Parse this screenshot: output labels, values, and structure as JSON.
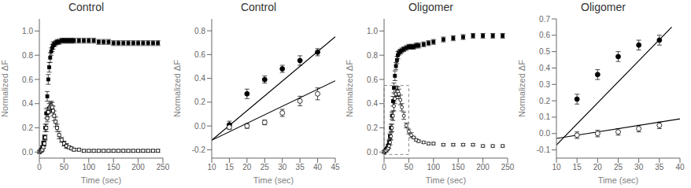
{
  "chart_data": [
    {
      "type": "scatter",
      "title": "Control",
      "xlabel": "Time (sec)",
      "ylabel": "Normalized ΔF",
      "xlim": [
        0,
        250
      ],
      "ylim": [
        -0.05,
        1.1
      ],
      "xticks": [
        0,
        50,
        100,
        150,
        200,
        250
      ],
      "yticks": [
        {
          "value": 0,
          "label": "0.0"
        },
        0.2,
        0.4,
        0.6,
        0.8,
        {
          "value": 1,
          "label": "1.0"
        }
      ],
      "grid": false,
      "series": [
        {
          "type": "scatter",
          "marker": "square",
          "color": "#000000",
          "x": [
            0,
            2,
            4,
            6,
            8,
            10,
            12,
            14,
            16,
            18,
            20,
            22,
            24,
            26,
            28,
            30,
            33,
            36,
            40,
            45,
            50,
            55,
            60,
            65,
            70,
            80,
            90,
            100,
            110,
            120,
            130,
            140,
            150,
            160,
            170,
            180,
            190,
            200,
            210,
            220,
            230,
            240
          ],
          "values": [
            0,
            0.01,
            0.02,
            0.04,
            0.07,
            0.12,
            0.2,
            0.32,
            0.46,
            0.6,
            0.7,
            0.78,
            0.83,
            0.86,
            0.88,
            0.89,
            0.9,
            0.91,
            0.91,
            0.92,
            0.92,
            0.92,
            0.92,
            0.92,
            0.92,
            0.92,
            0.92,
            0.92,
            0.92,
            0.91,
            0.91,
            0.91,
            0.9,
            0.9,
            0.9,
            0.9,
            0.9,
            0.9,
            0.9,
            0.9,
            0.9,
            0.9
          ],
          "yerr": [
            0.01,
            0.01,
            0.01,
            0.01,
            0.02,
            0.02,
            0.03,
            0.04,
            0.04,
            0.04,
            0.04,
            0.04,
            0.03,
            0.03,
            0.03,
            0.02,
            0.02,
            0.02,
            0.02,
            0.02,
            0.02,
            0.02,
            0.02,
            0.02,
            0.02,
            0.02,
            0.02,
            0.02,
            0.02,
            0.02,
            0.02,
            0.02,
            0.02,
            0.02,
            0.02,
            0.02,
            0.02,
            0.02,
            0.02,
            0.02,
            0.02,
            0.02
          ]
        },
        {
          "type": "scatter",
          "marker": "open-square",
          "color": "#000000",
          "x": [
            0,
            2,
            4,
            6,
            8,
            10,
            12,
            14,
            16,
            18,
            20,
            22,
            24,
            26,
            28,
            30,
            33,
            36,
            40,
            45,
            50,
            55,
            60,
            65,
            70,
            80,
            90,
            100,
            110,
            120,
            130,
            140,
            150,
            160,
            170,
            180,
            190,
            200,
            210,
            220,
            230,
            240
          ],
          "values": [
            0,
            0.01,
            0.01,
            0.02,
            0.04,
            0.07,
            0.12,
            0.2,
            0.28,
            0.33,
            0.36,
            0.37,
            0.38,
            0.37,
            0.34,
            0.3,
            0.25,
            0.2,
            0.14,
            0.1,
            0.07,
            0.05,
            0.04,
            0.03,
            0.02,
            0.02,
            0.01,
            0.01,
            0.01,
            0.01,
            0.01,
            0.01,
            0.01,
            0.01,
            0.01,
            0.01,
            0.01,
            0.01,
            0.01,
            0.01,
            0.01,
            0.01
          ],
          "yerr": [
            0.01,
            0.01,
            0.01,
            0.01,
            0.01,
            0.02,
            0.02,
            0.03,
            0.03,
            0.04,
            0.04,
            0.04,
            0.04,
            0.04,
            0.04,
            0.04,
            0.04,
            0.03,
            0.03,
            0.02,
            0.02,
            0.02,
            0.01,
            0.01,
            0.01,
            0.01,
            0.01,
            0.01,
            0.01,
            0.01,
            0.01,
            0.01,
            0.01,
            0.01,
            0.01,
            0.01,
            0.01,
            0.01,
            0.01,
            0.01,
            0.01,
            0.01
          ]
        }
      ]
    },
    {
      "type": "scatter",
      "title": "Control",
      "xlabel": "Time (sec)",
      "ylabel": "Normalized ΔF",
      "xlim": [
        10,
        45
      ],
      "ylim": [
        -0.27,
        0.9
      ],
      "xticks": [
        10,
        15,
        20,
        25,
        30,
        35,
        40,
        45
      ],
      "yticks": [
        -0.2,
        {
          "value": 0,
          "label": "0.0"
        },
        0.2,
        0.4,
        0.6,
        0.8
      ],
      "grid": false,
      "series": [
        {
          "type": "line",
          "line_style": "solid",
          "color": "#000000",
          "x": [
            10,
            45
          ],
          "values": [
            -0.12,
            0.75
          ]
        },
        {
          "type": "line",
          "line_style": "solid",
          "color": "#000000",
          "x": [
            10,
            45
          ],
          "values": [
            -0.12,
            0.38
          ]
        },
        {
          "type": "scatter",
          "marker": "circle",
          "color": "#000000",
          "x": [
            15,
            20,
            25,
            30,
            35,
            40
          ],
          "values": [
            0.01,
            0.27,
            0.39,
            0.48,
            0.55,
            0.62
          ],
          "yerr": [
            0.03,
            0.04,
            0.03,
            0.03,
            0.04,
            0.03
          ]
        },
        {
          "type": "scatter",
          "marker": "open-circle",
          "color": "#000000",
          "x": [
            15,
            20,
            25,
            30,
            35,
            40
          ],
          "values": [
            -0.01,
            0.0,
            0.03,
            0.11,
            0.21,
            0.27
          ],
          "yerr": [
            0.02,
            0.02,
            0.02,
            0.03,
            0.04,
            0.05
          ]
        }
      ]
    },
    {
      "type": "scatter",
      "title": "Oligomer",
      "xlabel": "Time (sec)",
      "ylabel": "Normalized ΔF",
      "xlim": [
        0,
        250
      ],
      "ylim": [
        -0.05,
        1.1
      ],
      "xticks": [
        0,
        50,
        100,
        150,
        200,
        250
      ],
      "yticks": [
        {
          "value": 0,
          "label": "0.0"
        },
        0.2,
        0.4,
        0.6,
        0.8,
        {
          "value": 1,
          "label": "1.0"
        }
      ],
      "grid": false,
      "series": [
        {
          "type": "scatter",
          "marker": "square",
          "color": "#000000",
          "x": [
            0,
            2,
            4,
            6,
            8,
            10,
            12,
            14,
            16,
            18,
            20,
            22,
            24,
            26,
            28,
            30,
            33,
            36,
            40,
            45,
            50,
            55,
            60,
            65,
            70,
            80,
            90,
            100,
            120,
            140,
            160,
            180,
            200,
            220,
            240
          ],
          "values": [
            0,
            0.01,
            0.02,
            0.03,
            0.05,
            0.08,
            0.13,
            0.2,
            0.3,
            0.42,
            0.53,
            0.63,
            0.71,
            0.76,
            0.8,
            0.82,
            0.83,
            0.84,
            0.85,
            0.86,
            0.87,
            0.87,
            0.87,
            0.88,
            0.88,
            0.89,
            0.9,
            0.91,
            0.93,
            0.94,
            0.95,
            0.96,
            0.96,
            0.96,
            0.96
          ],
          "yerr": [
            0.01,
            0.01,
            0.01,
            0.01,
            0.01,
            0.02,
            0.02,
            0.03,
            0.03,
            0.04,
            0.04,
            0.04,
            0.03,
            0.03,
            0.03,
            0.02,
            0.02,
            0.02,
            0.02,
            0.02,
            0.02,
            0.02,
            0.02,
            0.02,
            0.02,
            0.02,
            0.02,
            0.02,
            0.02,
            0.02,
            0.02,
            0.02,
            0.02,
            0.02,
            0.02
          ]
        },
        {
          "type": "scatter",
          "marker": "open-circle",
          "color": "#000000",
          "x": [
            0,
            2,
            4,
            6,
            8,
            10,
            12,
            14,
            16,
            18,
            20,
            22,
            24,
            26,
            28,
            30,
            33,
            36,
            40,
            45,
            50,
            55,
            60,
            65,
            70,
            80,
            90,
            100,
            120,
            140,
            160,
            180,
            200,
            220,
            240
          ],
          "values": [
            0,
            0.01,
            0.01,
            0.02,
            0.03,
            0.05,
            0.08,
            0.13,
            0.2,
            0.3,
            0.38,
            0.44,
            0.48,
            0.5,
            0.5,
            0.48,
            0.43,
            0.37,
            0.3,
            0.22,
            0.17,
            0.14,
            0.12,
            0.1,
            0.09,
            0.08,
            0.07,
            0.07,
            0.06,
            0.06,
            0.06,
            0.06,
            0.05,
            0.05,
            0.05
          ],
          "yerr": [
            0.01,
            0.01,
            0.01,
            0.01,
            0.01,
            0.02,
            0.02,
            0.03,
            0.03,
            0.04,
            0.04,
            0.04,
            0.04,
            0.04,
            0.04,
            0.04,
            0.04,
            0.03,
            0.03,
            0.02,
            0.02,
            0.02,
            0.01,
            0.01,
            0.01,
            0.01,
            0.01,
            0.01,
            0.01,
            0.01,
            0.01,
            0.01,
            0.01,
            0.01,
            0.01
          ]
        }
      ],
      "box": {
        "x": [
          0,
          50
        ],
        "y": [
          -0.02,
          0.55
        ],
        "color": "#888888",
        "line_style": "dashed"
      }
    },
    {
      "type": "scatter",
      "title": "Oligomer",
      "xlabel": "Time (sec)",
      "ylabel": "Normalized ΔF",
      "xlim": [
        10,
        40
      ],
      "ylim": [
        -0.15,
        0.7
      ],
      "xticks": [
        10,
        15,
        20,
        25,
        30,
        35,
        40
      ],
      "yticks": [
        -0.1,
        {
          "value": 0,
          "label": "0.0"
        },
        0.1,
        0.2,
        0.3,
        0.4,
        0.5,
        0.6,
        0.7
      ],
      "grid": false,
      "series": [
        {
          "type": "line",
          "line_style": "solid",
          "color": "#000000",
          "x": [
            10,
            38
          ],
          "values": [
            -0.07,
            0.65
          ]
        },
        {
          "type": "line",
          "line_style": "solid",
          "color": "#000000",
          "x": [
            10,
            40
          ],
          "values": [
            -0.03,
            0.09
          ]
        },
        {
          "type": "scatter",
          "marker": "circle",
          "color": "#000000",
          "x": [
            15,
            20,
            25,
            30,
            35
          ],
          "values": [
            0.21,
            0.36,
            0.47,
            0.54,
            0.57
          ],
          "yerr": [
            0.03,
            0.03,
            0.03,
            0.03,
            0.03
          ]
        },
        {
          "type": "scatter",
          "marker": "open-circle",
          "color": "#000000",
          "x": [
            15,
            20,
            25,
            30,
            35
          ],
          "values": [
            -0.01,
            0.0,
            0.01,
            0.03,
            0.05
          ],
          "yerr": [
            0.02,
            0.02,
            0.02,
            0.02,
            0.02
          ]
        }
      ]
    }
  ]
}
